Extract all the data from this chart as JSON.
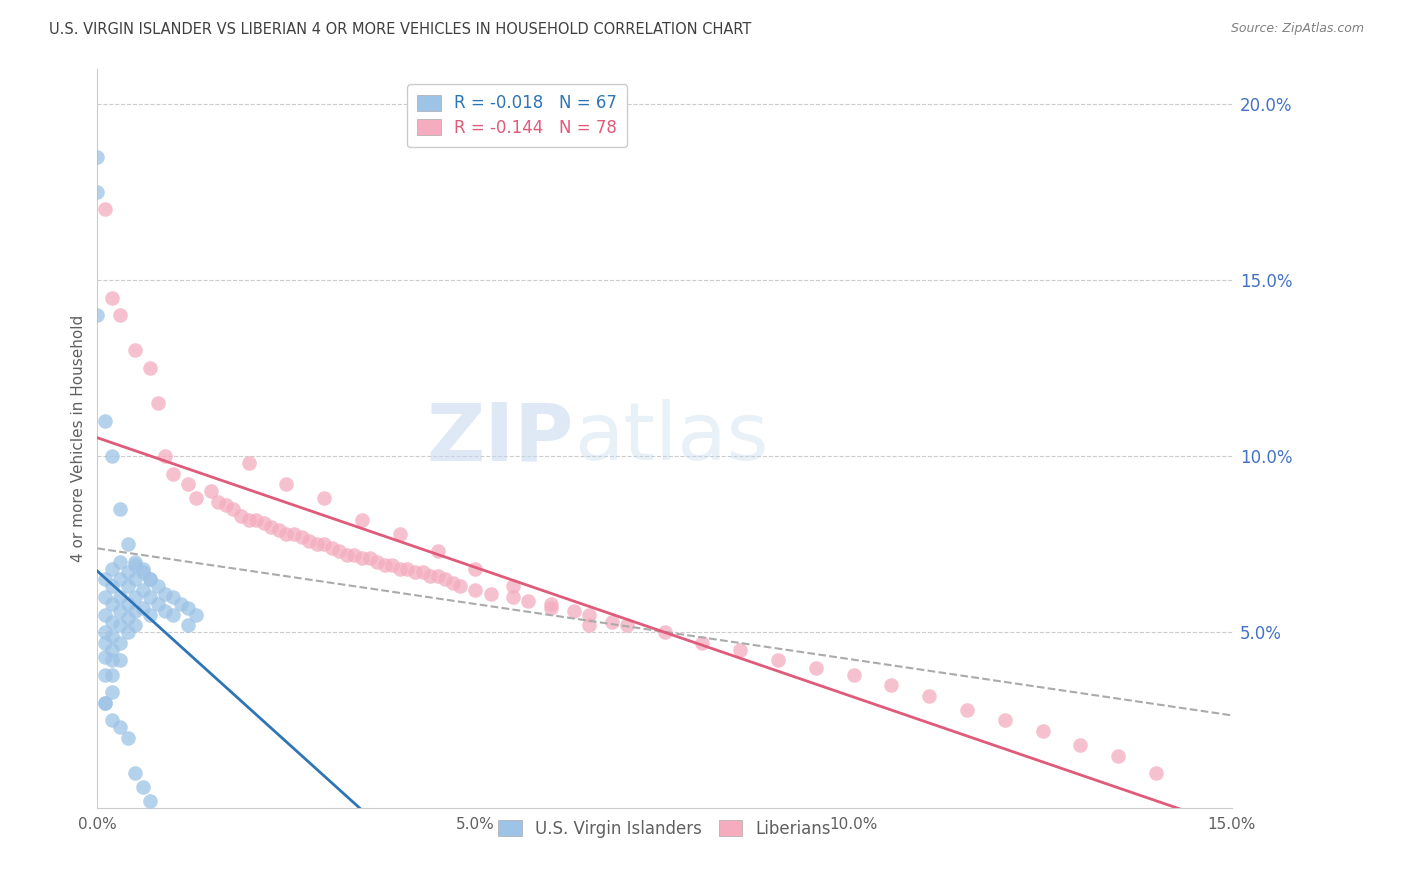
{
  "title": "U.S. VIRGIN ISLANDER VS LIBERIAN 4 OR MORE VEHICLES IN HOUSEHOLD CORRELATION CHART",
  "source": "Source: ZipAtlas.com",
  "ylabel": "4 or more Vehicles in Household",
  "xlim": [
    0.0,
    0.15
  ],
  "ylim": [
    0.0,
    0.21
  ],
  "legend1_label": "R = -0.018   N = 67",
  "legend2_label": "R = -0.144   N = 78",
  "blue_color": "#9DC3E6",
  "pink_color": "#F4ACBE",
  "blue_line_color": "#2E75B6",
  "pink_line_color": "#E05A7A",
  "dashed_line_color": "#AAAAAA",
  "right_axis_color": "#4472C4",
  "background_color": "#FFFFFF",
  "watermark_color": "#DDEAF6",
  "title_color": "#404040",
  "source_color": "#808080",
  "tick_color": "#606060",
  "right_tick_color": "#4472C4",
  "grid_color": "#CCCCCC",
  "blue_x": [
    0.001,
    0.001,
    0.001,
    0.001,
    0.001,
    0.001,
    0.001,
    0.001,
    0.002,
    0.002,
    0.002,
    0.002,
    0.002,
    0.002,
    0.002,
    0.002,
    0.002,
    0.003,
    0.003,
    0.003,
    0.003,
    0.003,
    0.003,
    0.003,
    0.004,
    0.004,
    0.004,
    0.004,
    0.004,
    0.005,
    0.005,
    0.005,
    0.005,
    0.005,
    0.006,
    0.006,
    0.006,
    0.007,
    0.007,
    0.007,
    0.008,
    0.008,
    0.009,
    0.009,
    0.01,
    0.01,
    0.011,
    0.012,
    0.012,
    0.013,
    0.0,
    0.0,
    0.0,
    0.001,
    0.002,
    0.003,
    0.004,
    0.005,
    0.006,
    0.007,
    0.001,
    0.002,
    0.003,
    0.004,
    0.005,
    0.006,
    0.007
  ],
  "blue_y": [
    0.065,
    0.06,
    0.055,
    0.05,
    0.047,
    0.043,
    0.038,
    0.03,
    0.068,
    0.063,
    0.058,
    0.053,
    0.049,
    0.045,
    0.042,
    0.038,
    0.033,
    0.07,
    0.065,
    0.06,
    0.056,
    0.052,
    0.047,
    0.042,
    0.067,
    0.063,
    0.058,
    0.054,
    0.05,
    0.069,
    0.065,
    0.06,
    0.056,
    0.052,
    0.067,
    0.062,
    0.057,
    0.065,
    0.06,
    0.055,
    0.063,
    0.058,
    0.061,
    0.056,
    0.06,
    0.055,
    0.058,
    0.057,
    0.052,
    0.055,
    0.185,
    0.175,
    0.14,
    0.11,
    0.1,
    0.085,
    0.075,
    0.07,
    0.068,
    0.065,
    0.03,
    0.025,
    0.023,
    0.02,
    0.01,
    0.006,
    0.002
  ],
  "pink_x": [
    0.001,
    0.002,
    0.003,
    0.005,
    0.007,
    0.008,
    0.009,
    0.01,
    0.012,
    0.013,
    0.015,
    0.016,
    0.017,
    0.018,
    0.019,
    0.02,
    0.021,
    0.022,
    0.023,
    0.024,
    0.025,
    0.026,
    0.027,
    0.028,
    0.029,
    0.03,
    0.031,
    0.032,
    0.033,
    0.034,
    0.035,
    0.036,
    0.037,
    0.038,
    0.039,
    0.04,
    0.041,
    0.042,
    0.043,
    0.044,
    0.045,
    0.046,
    0.047,
    0.048,
    0.05,
    0.052,
    0.055,
    0.057,
    0.06,
    0.063,
    0.065,
    0.068,
    0.07,
    0.075,
    0.08,
    0.085,
    0.09,
    0.095,
    0.1,
    0.105,
    0.11,
    0.115,
    0.12,
    0.125,
    0.13,
    0.135,
    0.14,
    0.02,
    0.025,
    0.03,
    0.035,
    0.04,
    0.045,
    0.05,
    0.055,
    0.06,
    0.065
  ],
  "pink_y": [
    0.17,
    0.145,
    0.14,
    0.13,
    0.125,
    0.115,
    0.1,
    0.095,
    0.092,
    0.088,
    0.09,
    0.087,
    0.086,
    0.085,
    0.083,
    0.082,
    0.082,
    0.081,
    0.08,
    0.079,
    0.078,
    0.078,
    0.077,
    0.076,
    0.075,
    0.075,
    0.074,
    0.073,
    0.072,
    0.072,
    0.071,
    0.071,
    0.07,
    0.069,
    0.069,
    0.068,
    0.068,
    0.067,
    0.067,
    0.066,
    0.066,
    0.065,
    0.064,
    0.063,
    0.062,
    0.061,
    0.06,
    0.059,
    0.058,
    0.056,
    0.055,
    0.053,
    0.052,
    0.05,
    0.047,
    0.045,
    0.042,
    0.04,
    0.038,
    0.035,
    0.032,
    0.028,
    0.025,
    0.022,
    0.018,
    0.015,
    0.01,
    0.098,
    0.092,
    0.088,
    0.082,
    0.078,
    0.073,
    0.068,
    0.063,
    0.057,
    0.052
  ]
}
